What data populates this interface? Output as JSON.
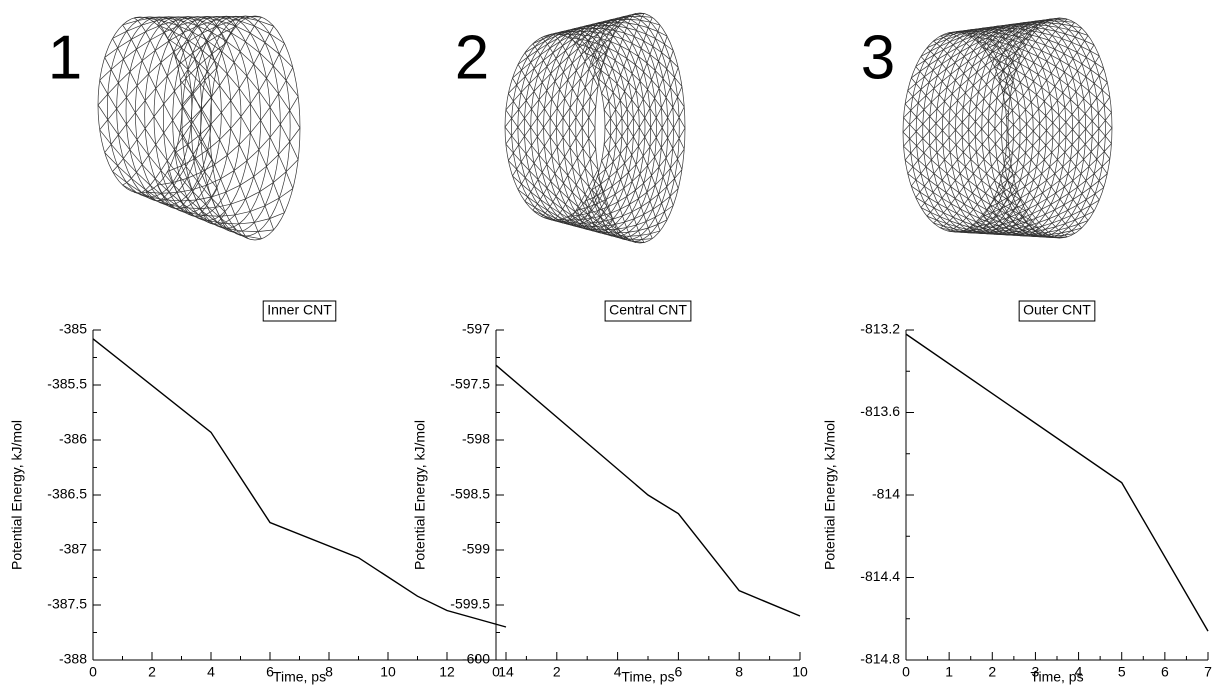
{
  "chart_data": [
    {
      "type": "line",
      "label": "1",
      "title": "Inner CNT",
      "xlabel": "Time, ps",
      "ylabel": "Potential Energy, kJ/mol",
      "x": [
        0,
        4,
        6,
        9,
        11,
        12,
        14
      ],
      "series": [
        {
          "color": "#000000",
          "values": [
            -385.08,
            -385.93,
            -386.75,
            -387.07,
            -387.42,
            -387.55,
            -387.7
          ]
        }
      ],
      "xlim": [
        0,
        14
      ],
      "xticks": [
        0,
        2,
        4,
        6,
        8,
        10,
        12,
        14
      ],
      "ylim": [
        -388,
        -385
      ],
      "yticks": [
        -388,
        -387.5,
        -387,
        -386.5,
        -386,
        -385.5,
        -385
      ]
    },
    {
      "type": "line",
      "label": "2",
      "title": "Central CNT",
      "xlabel": "Time, ps",
      "ylabel": "Potential Energy, kJ/mol",
      "x": [
        0,
        5,
        6,
        8,
        10
      ],
      "series": [
        {
          "color": "#000000",
          "values": [
            -597.32,
            -598.5,
            -598.67,
            -599.37,
            -599.6
          ]
        }
      ],
      "xlim": [
        0,
        10
      ],
      "xticks": [
        0,
        2,
        4,
        6,
        8,
        10
      ],
      "ylim": [
        -600,
        -597
      ],
      "yticks": [
        -600,
        -599.5,
        -599,
        -598.5,
        -598,
        -597.5,
        -597
      ]
    },
    {
      "type": "line",
      "label": "3",
      "title": "Outer CNT",
      "xlabel": "Time, ps",
      "ylabel": "Potential Energy, kJ/mol",
      "x": [
        0,
        5,
        7
      ],
      "series": [
        {
          "color": "#000000",
          "values": [
            -813.22,
            -813.94,
            -814.66
          ]
        }
      ],
      "xlim": [
        0,
        7
      ],
      "xticks": [
        0,
        1,
        2,
        3,
        4,
        5,
        6,
        7
      ],
      "ylim": [
        -814.8,
        -813.2
      ],
      "yticks": [
        -814.8,
        -814.4,
        -814,
        -813.6,
        -813.2
      ]
    }
  ]
}
